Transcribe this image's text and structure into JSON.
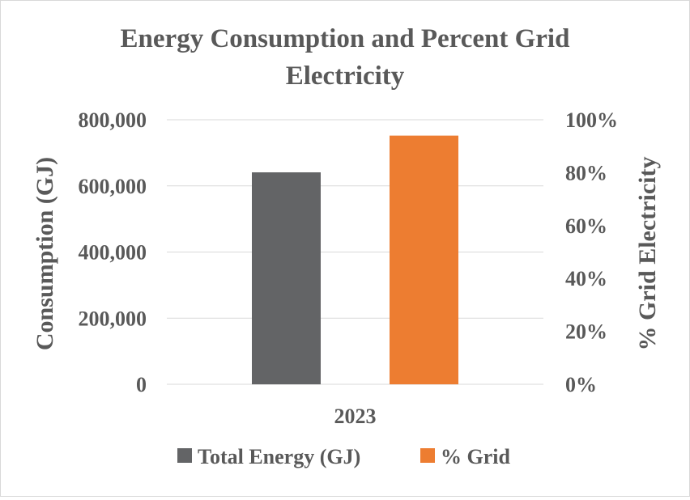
{
  "chart_data": {
    "type": "bar",
    "title_lines": [
      "Energy Consumption and Percent Grid",
      "Electricity"
    ],
    "categories": [
      "2023"
    ],
    "series": [
      {
        "name": "Total Energy (GJ)",
        "axis": "left",
        "color": "#636466",
        "values": [
          641000
        ]
      },
      {
        "name": "% Grid",
        "axis": "right",
        "color": "#ed7d31",
        "values": [
          0.94
        ]
      }
    ],
    "y_left": {
      "label": "Consumption (GJ)",
      "ylim": [
        0,
        800000
      ],
      "ticks": [
        0,
        200000,
        400000,
        600000,
        800000
      ],
      "tick_labels": [
        "0",
        "200,000",
        "400,000",
        "600,000",
        "800,000"
      ]
    },
    "y_right": {
      "label": "% Grid Electricity",
      "ylim": [
        0,
        1
      ],
      "ticks": [
        0,
        0.2,
        0.4,
        0.6,
        0.8,
        1.0
      ],
      "tick_labels": [
        "0%",
        "20%",
        "40%",
        "60%",
        "80%",
        "100%"
      ]
    },
    "grid": true,
    "legend": "bottom",
    "colors": {
      "text": "#595959",
      "grid": "#d9d9d9"
    }
  }
}
